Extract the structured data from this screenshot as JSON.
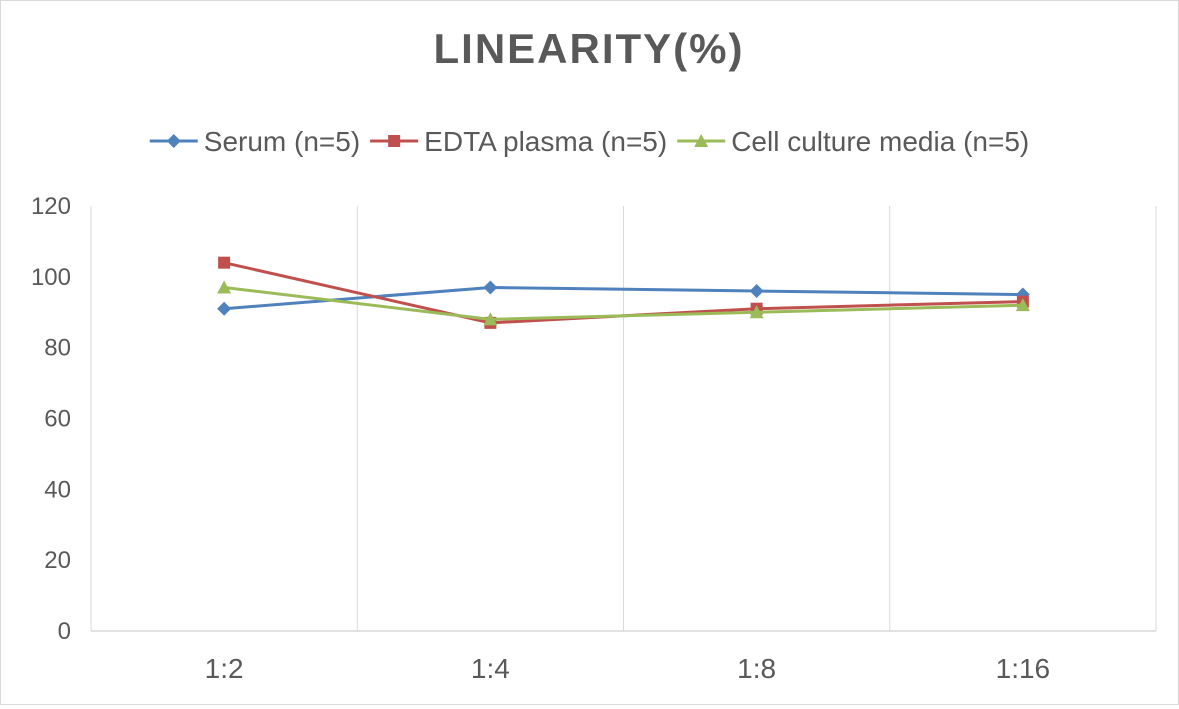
{
  "chart_data": {
    "type": "line",
    "title": "LINEARITY(%)",
    "categories": [
      "1:2",
      "1:4",
      "1:8",
      "1:16"
    ],
    "series": [
      {
        "name": "Serum (n=5)",
        "values": [
          91,
          97,
          96,
          95
        ],
        "color": "#4f81bd",
        "marker": "diamond"
      },
      {
        "name": "EDTA plasma (n=5)",
        "values": [
          104,
          87,
          91,
          93
        ],
        "color": "#c0504d",
        "marker": "square"
      },
      {
        "name": "Cell culture media (n=5)",
        "values": [
          97,
          88,
          90,
          92
        ],
        "color": "#9bbb59",
        "marker": "triangle"
      }
    ],
    "ylim": [
      0,
      120
    ],
    "yticks": [
      "0",
      "20",
      "40",
      "60",
      "80",
      "100",
      "120"
    ],
    "xlabel": "",
    "ylabel": "",
    "grid": "vertical",
    "legend": "top"
  }
}
